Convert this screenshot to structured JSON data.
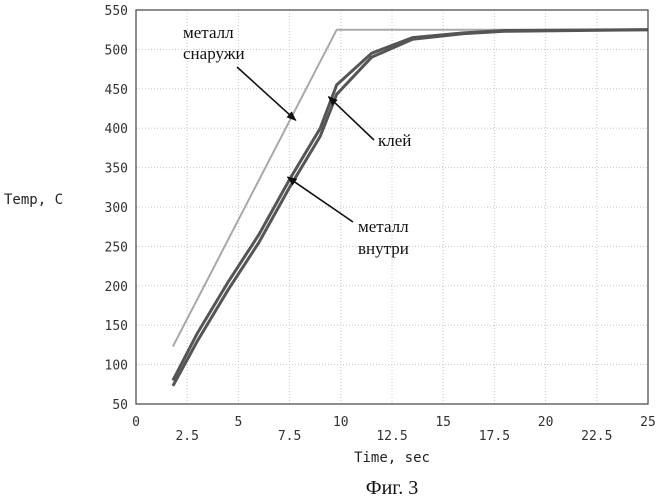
{
  "chart_data": {
    "type": "line",
    "xlabel": "Time, sec",
    "ylabel": "Temp, C",
    "xlim": [
      0,
      25
    ],
    "ylim": [
      50,
      550
    ],
    "x_ticks_upper": [
      "0",
      "5",
      "10",
      "15",
      "20",
      "25"
    ],
    "x_ticks_lower": [
      "2.5",
      "7.5",
      "12.5",
      "17.5",
      "22.5"
    ],
    "y_ticks": [
      "50",
      "100",
      "150",
      "200",
      "250",
      "300",
      "350",
      "400",
      "450",
      "500",
      "550"
    ],
    "grid": true,
    "series": [
      {
        "color": "#a9a9a9",
        "points": [
          [
            1.8,
            123
          ],
          [
            9.8,
            525
          ],
          [
            25,
            525
          ]
        ]
      },
      {
        "color": "#555555",
        "points": [
          [
            1.8,
            80
          ],
          [
            3,
            140
          ],
          [
            4.5,
            205
          ],
          [
            6,
            265
          ],
          [
            7.5,
            335
          ],
          [
            9,
            400
          ],
          [
            9.8,
            455
          ],
          [
            11.5,
            495
          ],
          [
            13.5,
            515
          ],
          [
            16,
            521
          ],
          [
            18,
            524
          ],
          [
            25,
            525
          ]
        ]
      },
      {
        "color": "#555555",
        "points": [
          [
            1.8,
            73
          ],
          [
            3,
            130
          ],
          [
            4.5,
            195
          ],
          [
            6,
            255
          ],
          [
            7.5,
            325
          ],
          [
            9,
            390
          ],
          [
            9.8,
            443
          ],
          [
            11.5,
            490
          ],
          [
            13.5,
            513
          ],
          [
            16,
            520
          ],
          [
            18,
            523
          ],
          [
            25,
            525
          ]
        ]
      }
    ],
    "annotations": [
      {
        "id": "metal-outside",
        "lines": [
          "металл",
          "снаружи"
        ],
        "target": [
          7.8,
          410
        ]
      },
      {
        "id": "glue",
        "lines": [
          "клей"
        ],
        "target": [
          9.4,
          440
        ]
      },
      {
        "id": "metal-inside",
        "lines": [
          "металл",
          "внутри"
        ],
        "target": [
          7.4,
          338
        ]
      }
    ]
  },
  "caption": "Фиг. 3"
}
